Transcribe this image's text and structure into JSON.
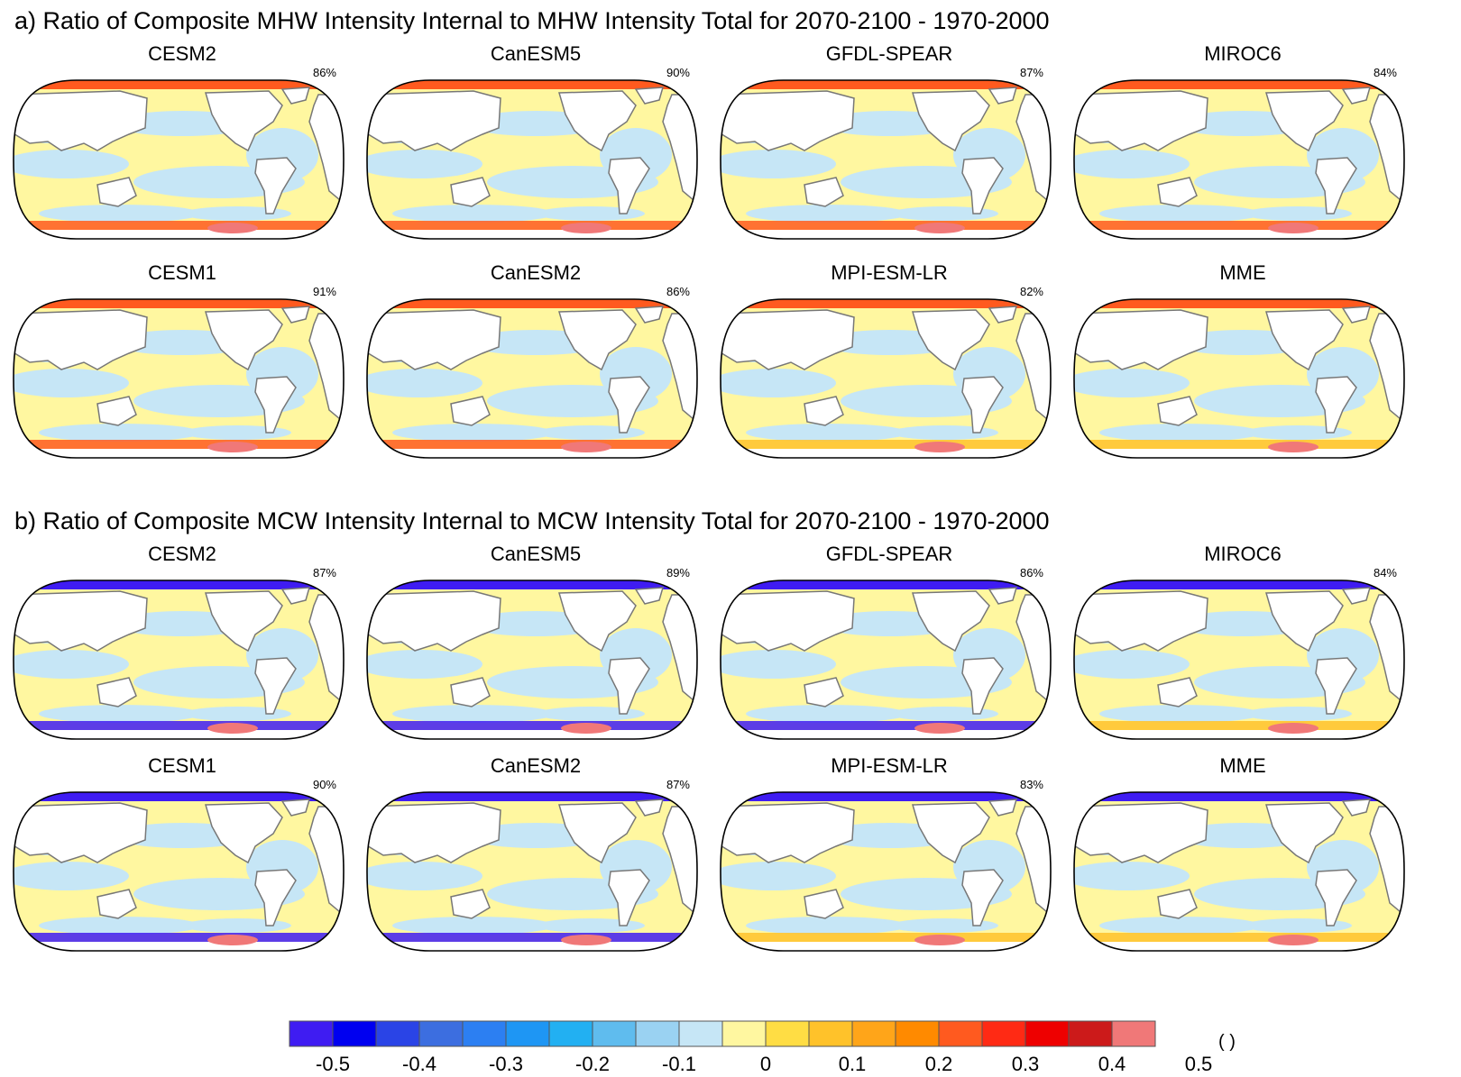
{
  "figure": {
    "section_a": {
      "title": "a) Ratio of Composite MHW Intensity Internal to MHW Intensity Total for 2070-2100 - 1970-2000",
      "panels": [
        {
          "name": "CESM2",
          "pct": "86%",
          "north": "warm",
          "south": "warm"
        },
        {
          "name": "CanESM5",
          "pct": "90%",
          "north": "warm",
          "south": "warm"
        },
        {
          "name": "GFDL-SPEAR",
          "pct": "87%",
          "north": "warm",
          "south": "warm"
        },
        {
          "name": "MIROC6",
          "pct": "84%",
          "north": "warm",
          "south": "warm"
        },
        {
          "name": "CESM1",
          "pct": "91%",
          "north": "warm",
          "south": "warm"
        },
        {
          "name": "CanESM2",
          "pct": "86%",
          "north": "warm",
          "south": "warm"
        },
        {
          "name": "MPI-ESM-LR",
          "pct": "82%",
          "north": "warm",
          "south": "mixed"
        },
        {
          "name": "MME",
          "pct": "",
          "north": "warm",
          "south": "mixed"
        }
      ]
    },
    "section_b": {
      "title": "b) Ratio of Composite MCW Intensity Internal to MCW Intensity Total for 2070-2100 - 1970-2000",
      "panels": [
        {
          "name": "CESM2",
          "pct": "87%",
          "north": "cold",
          "south": "cold"
        },
        {
          "name": "CanESM5",
          "pct": "89%",
          "north": "cold",
          "south": "cold"
        },
        {
          "name": "GFDL-SPEAR",
          "pct": "86%",
          "north": "cold",
          "south": "cold"
        },
        {
          "name": "MIROC6",
          "pct": "84%",
          "north": "cold",
          "south": "mixed"
        },
        {
          "name": "CESM1",
          "pct": "90%",
          "north": "cold",
          "south": "cold"
        },
        {
          "name": "CanESM2",
          "pct": "87%",
          "north": "cold",
          "south": "cold"
        },
        {
          "name": "MPI-ESM-LR",
          "pct": "83%",
          "north": "cold",
          "south": "mixed"
        },
        {
          "name": "MME",
          "pct": "",
          "north": "cold",
          "south": "mixed"
        }
      ]
    }
  },
  "colorbar": {
    "colors": [
      "#3f1cf2",
      "#0000f0",
      "#2a44e6",
      "#3c6ee0",
      "#2c7ff2",
      "#1e96f4",
      "#22b0f2",
      "#5fbcee",
      "#9ad2f2",
      "#c6e6f6",
      "#fff7a0",
      "#ffdd44",
      "#ffc22a",
      "#ffa519",
      "#ff8a00",
      "#ff5a1f",
      "#ff2a14",
      "#ee0000",
      "#cc1a1a",
      "#f07878"
    ],
    "tick_labels": [
      "-0.5",
      "-0.4",
      "-0.3",
      "-0.2",
      "-0.1",
      "0",
      "0.1",
      "0.2",
      "0.3",
      "0.4",
      "0.5"
    ],
    "tick_values": [
      -0.5,
      -0.4,
      -0.3,
      -0.2,
      -0.1,
      0,
      0.1,
      0.2,
      0.3,
      0.4,
      0.5
    ],
    "units": "( )"
  },
  "palette": {
    "warm_band": "#ff5a1f",
    "cold_band": "#3f1cf2",
    "land": "#ffffff",
    "coast": "#777777",
    "ocean_yellow": "#fff7a0",
    "ocean_blue": "#c6e6f6",
    "antarctic_fill": "#f07878"
  }
}
